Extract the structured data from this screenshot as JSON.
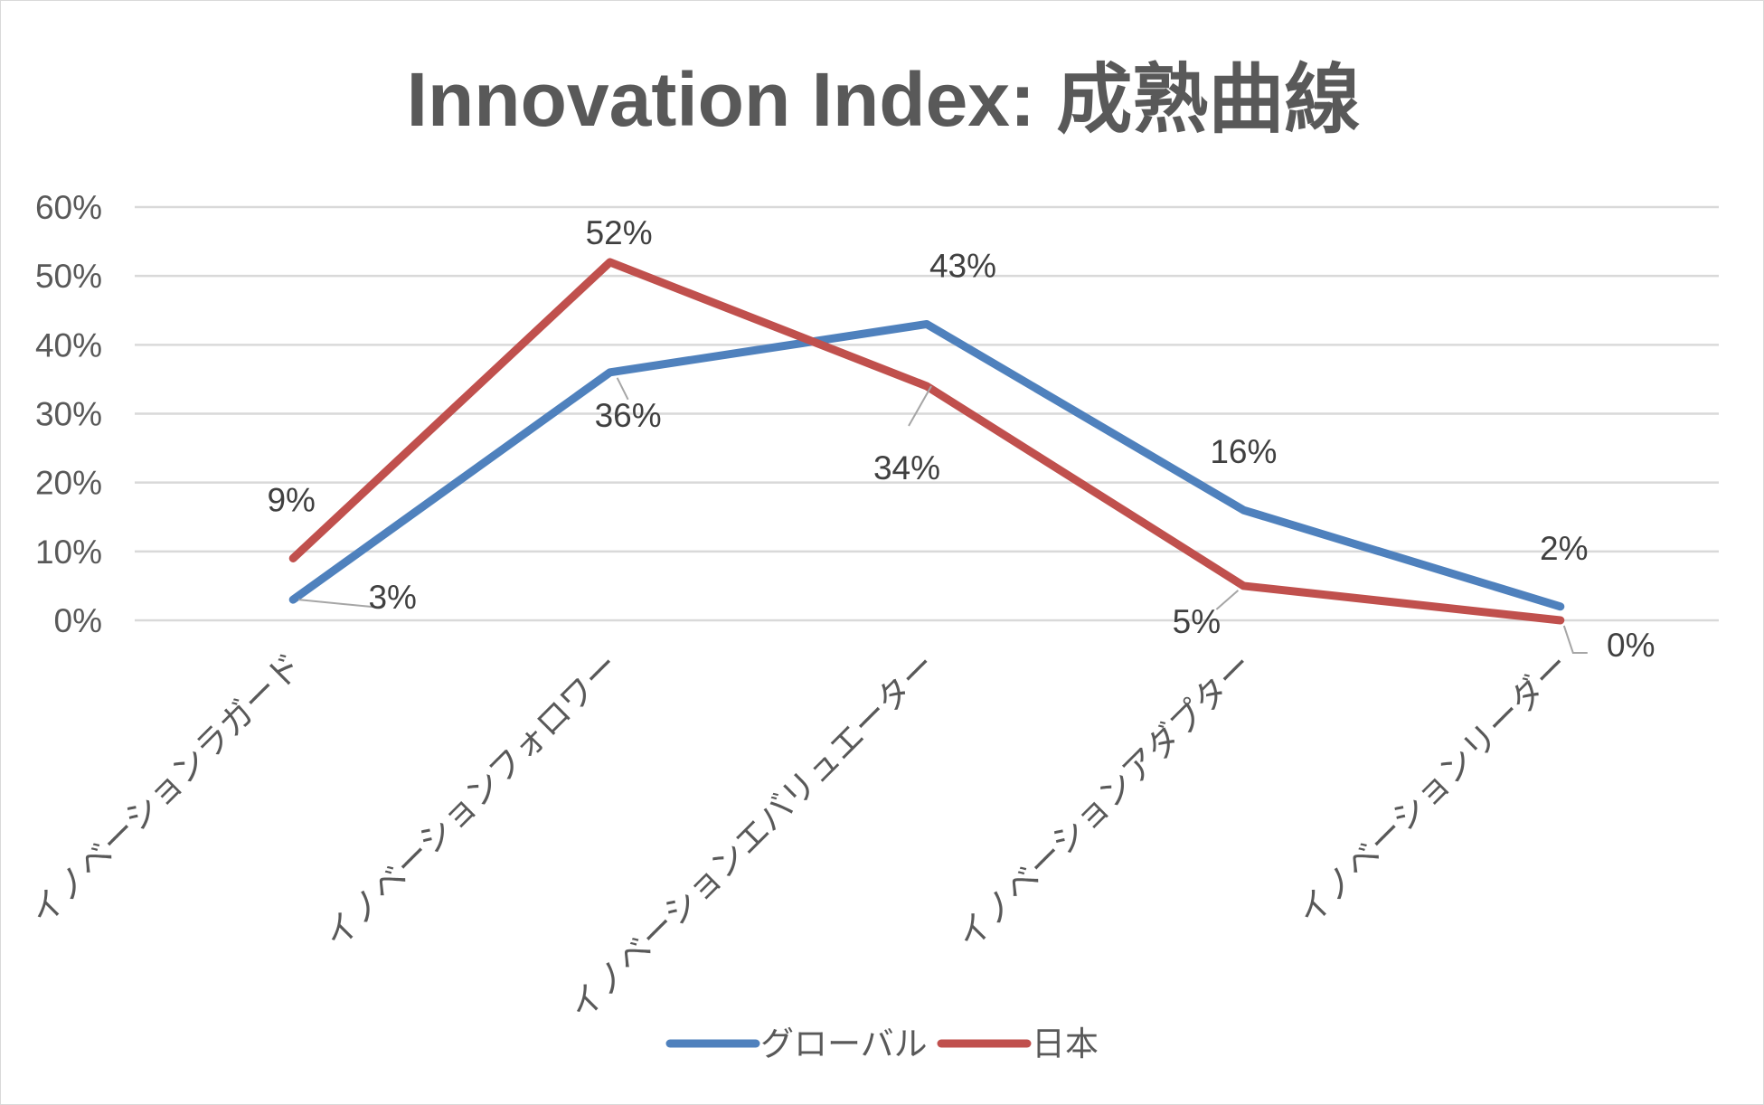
{
  "chart_data": {
    "type": "line",
    "title": "Innovation Index: 成熟曲線",
    "categories": [
      "イノベーションラガード",
      "イノベーションフォロワー",
      "イノベーションエバリュエーター",
      "イノベーションアダプター",
      "イノベーションリーダー"
    ],
    "series": [
      {
        "name": "グローバル",
        "color": "#4f81bd",
        "values": [
          3,
          36,
          43,
          16,
          2
        ],
        "labels": [
          "3%",
          "36%",
          "43%",
          "16%",
          "2%"
        ]
      },
      {
        "name": "日本",
        "color": "#c0504d",
        "values": [
          9,
          52,
          34,
          5,
          0
        ],
        "labels": [
          "9%",
          "52%",
          "34%",
          "5%",
          "0%"
        ]
      }
    ],
    "ylim": [
      0,
      60
    ],
    "yticks": [
      0,
      10,
      20,
      30,
      40,
      50,
      60
    ],
    "ytick_labels": [
      "0%",
      "10%",
      "20%",
      "30%",
      "40%",
      "50%",
      "60%"
    ],
    "xlabel": "",
    "ylabel": "",
    "grid": true,
    "legend_position": "bottom"
  }
}
